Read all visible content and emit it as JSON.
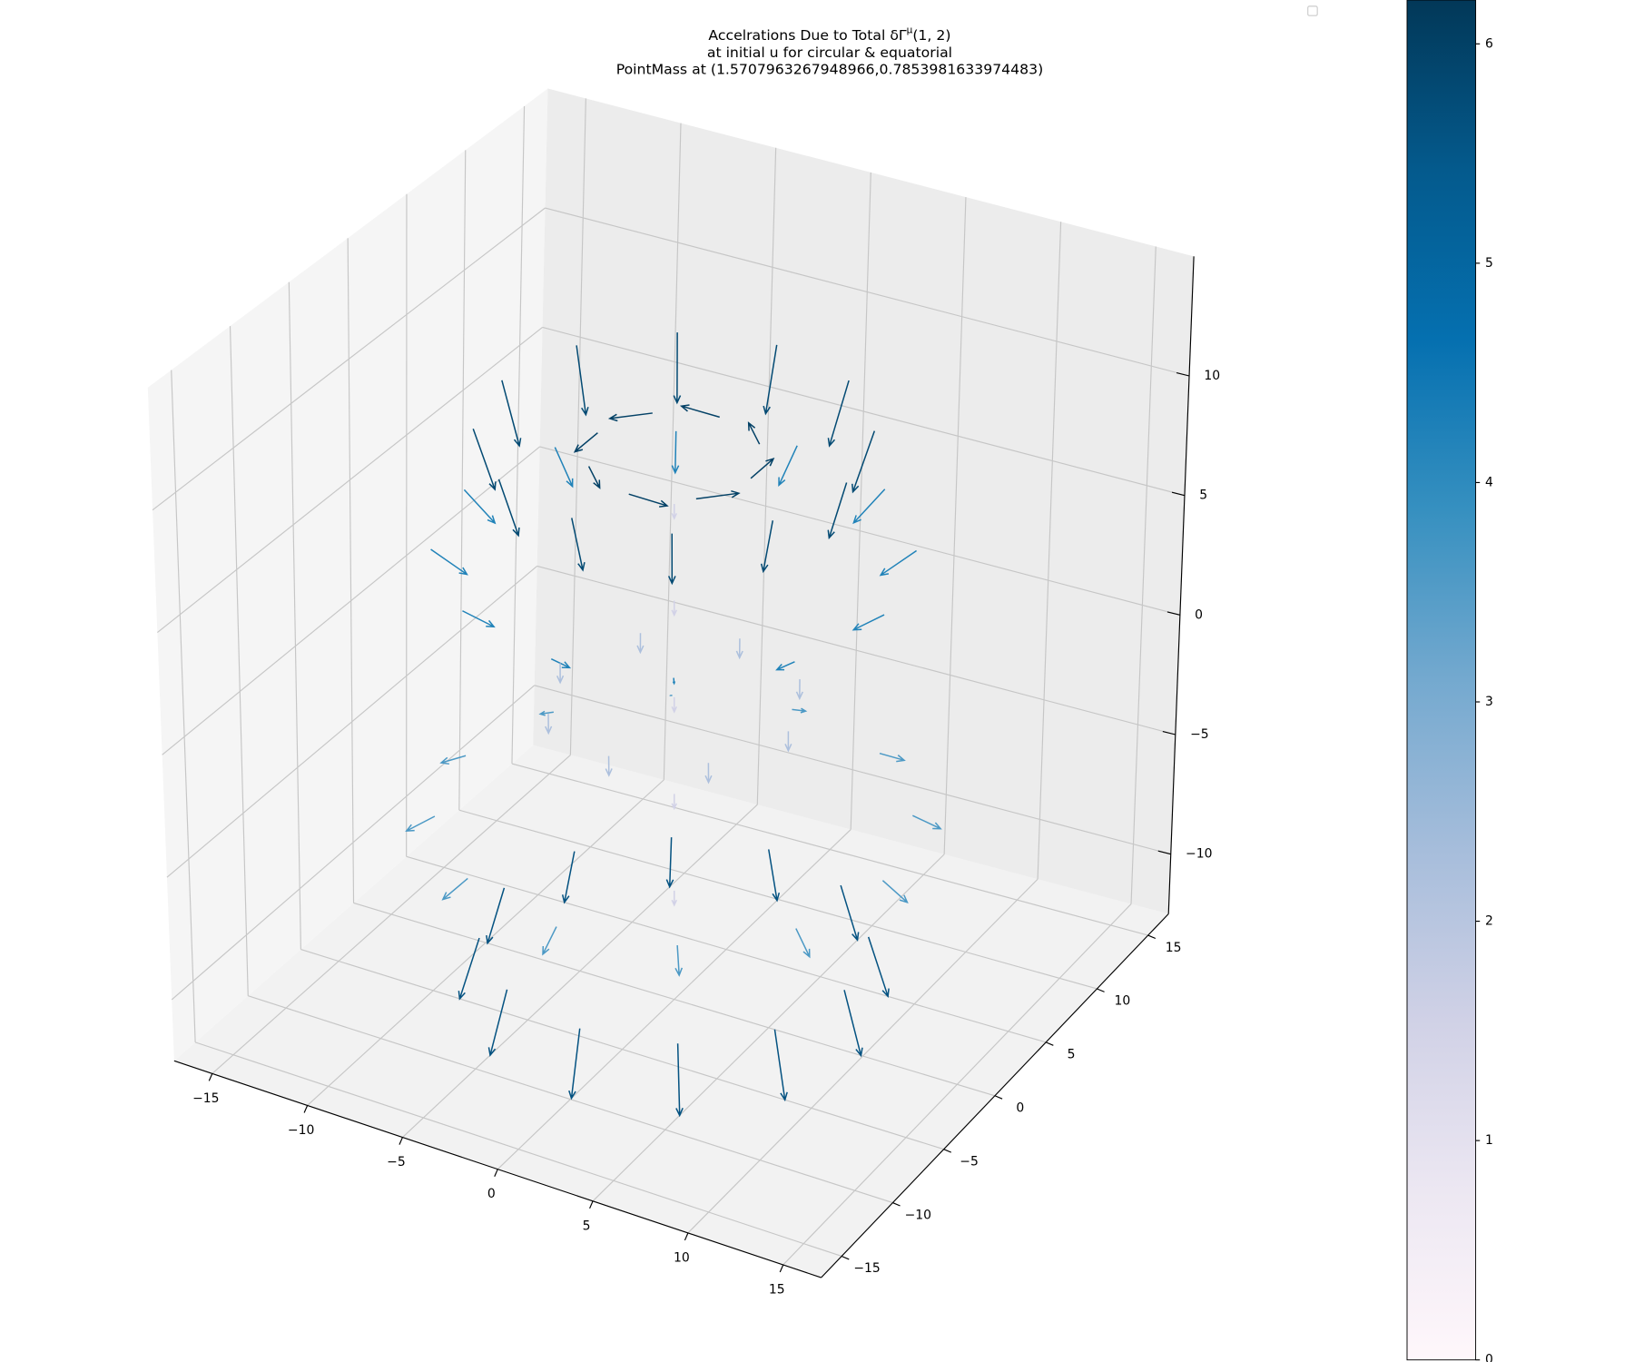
{
  "chart_data": {
    "type": "quiver3d",
    "title": [
      "Accelrations Due to Total δΓ",
      "at initial u for circular & equatorial",
      "PointMass at (1.5707963267948966,0.7853981633974483)"
    ],
    "title_superscript": "μ",
    "title_suffix": "(1, 2)",
    "xlim": [
      -17,
      17
    ],
    "ylim": [
      -17,
      17
    ],
    "zlim": [
      -12.5,
      15
    ],
    "xticks": [
      {
        "value": -15,
        "label": "−15"
      },
      {
        "value": -10,
        "label": "−10"
      },
      {
        "value": -5,
        "label": "−5"
      },
      0,
      5,
      10,
      15
    ],
    "yticks": [
      {
        "value": -15,
        "label": "−15"
      },
      {
        "value": -10,
        "label": "−10"
      },
      {
        "value": -5,
        "label": "−5"
      },
      0,
      5,
      10,
      15
    ],
    "zticks": [
      {
        "value": -10,
        "label": "−10"
      },
      {
        "value": -5,
        "label": "−5"
      },
      0,
      5,
      10
    ],
    "grid": true,
    "colormap": [
      "#fff7fb",
      "#ece7f2",
      "#d0d1e6",
      "#a6bddb",
      "#74a9cf",
      "#3690c0",
      "#0570b0",
      "#045a8d",
      "#023858"
    ],
    "clim": [
      0,
      6.2
    ],
    "cticks": [
      0,
      1,
      2,
      3,
      4,
      5,
      6
    ],
    "x": [
      9,
      7.8,
      4.5,
      0,
      -4.5,
      -7.8,
      -9,
      -7.8,
      -4.5,
      0,
      4.5,
      7.8,
      11,
      9.5,
      5.5,
      0,
      -5.5,
      -9.5,
      -11,
      -9.5,
      -5.5,
      0,
      5.5,
      9.5,
      11,
      9.5,
      5.5,
      0,
      -5.5,
      -9.5,
      -11,
      -9.5,
      -5.5,
      0,
      5.5,
      9.5,
      9,
      7.8,
      4.5,
      0,
      -4.5,
      -7.8,
      -9,
      -7.8,
      -4.5,
      0,
      4.5,
      7.8,
      4,
      2.8,
      0,
      -2.8,
      -4,
      -2.8,
      0,
      2.8,
      0,
      0,
      0,
      0,
      0,
      6,
      4.2,
      0,
      -4.2,
      -6,
      -4.2,
      0,
      4.2
    ],
    "y": [
      0,
      4.5,
      7.8,
      9,
      7.8,
      4.5,
      0,
      -4.5,
      -7.8,
      -9,
      -7.8,
      -4.5,
      0,
      5.5,
      9.5,
      11,
      9.5,
      5.5,
      0,
      -5.5,
      -9.5,
      -11,
      -9.5,
      -5.5,
      0,
      5.5,
      9.5,
      11,
      9.5,
      5.5,
      0,
      -5.5,
      -9.5,
      -11,
      -9.5,
      -5.5,
      0,
      4.5,
      7.8,
      9,
      7.8,
      4.5,
      0,
      -4.5,
      -7.8,
      -9,
      -7.8,
      -4.5,
      0,
      2.8,
      4,
      2.8,
      0,
      -2.8,
      -4,
      -2.8,
      0,
      0,
      0,
      0,
      0,
      0,
      4.2,
      6,
      4.2,
      0,
      -4.2,
      -6,
      -4.2
    ],
    "z": [
      11,
      11,
      11,
      11,
      11,
      11,
      11,
      11,
      11,
      11,
      11,
      11,
      6,
      6,
      6,
      6,
      6,
      6,
      6,
      6,
      6,
      6,
      6,
      6,
      -5,
      -5,
      -5,
      -5,
      -5,
      -5,
      -5,
      -5,
      -5,
      -5,
      -5,
      -5,
      -10,
      -10,
      -10,
      -10,
      -10,
      -10,
      -10,
      -10,
      -10,
      -10,
      -10,
      -10,
      10,
      10,
      10,
      10,
      10,
      10,
      10,
      10,
      -8,
      -4,
      0,
      4,
      8,
      0,
      0,
      0,
      0,
      0,
      0,
      0,
      0
    ],
    "u": [
      -0.9,
      -0.8,
      -0.5,
      0,
      0.5,
      0.8,
      0.9,
      0.8,
      0.5,
      0,
      -0.5,
      -0.8,
      -1.6,
      -1.4,
      -0.8,
      0,
      0.8,
      1.4,
      1.6,
      1.4,
      0.8,
      0,
      -0.8,
      -1.4,
      1.3,
      1.1,
      0.7,
      0,
      -0.7,
      -1.1,
      -1.3,
      -1.1,
      -0.7,
      0,
      0.7,
      1.1,
      0.9,
      0.8,
      0.5,
      0,
      -0.5,
      -0.8,
      -0.9,
      -0.8,
      -0.5,
      0,
      0.5,
      0.8,
      0,
      -1.4,
      -2,
      -1.4,
      0,
      1.4,
      2,
      1.4,
      0,
      0,
      0,
      0,
      0,
      0,
      0,
      0,
      0,
      0,
      0,
      0,
      0
    ],
    "v": [
      0,
      -0.5,
      -0.8,
      -0.9,
      -0.8,
      -0.5,
      0,
      0.5,
      0.8,
      0.9,
      0.8,
      0.5,
      0,
      -0.8,
      -1.4,
      -1.6,
      -1.4,
      -0.8,
      0,
      0.8,
      1.4,
      1.6,
      1.4,
      0.8,
      0,
      0.7,
      1.1,
      1.3,
      1.1,
      0.7,
      0,
      -0.7,
      -1.1,
      -1.3,
      -1.1,
      -0.7,
      0,
      0.5,
      0.8,
      0.9,
      0.8,
      0.5,
      0,
      -0.5,
      -0.8,
      -0.9,
      -0.8,
      -0.5,
      2,
      1.4,
      0,
      -1.4,
      -2,
      -1.4,
      0,
      1.4,
      0,
      0,
      0,
      0,
      0,
      0,
      0,
      0,
      0,
      0,
      0,
      0,
      0
    ],
    "w": [
      -2.5,
      -2.5,
      -2.5,
      -2.5,
      -2.5,
      -2.5,
      -2.5,
      -2.5,
      -2.5,
      -2.5,
      -2.5,
      -2.5,
      -1,
      -1,
      -1,
      -1,
      -1,
      -1,
      -1,
      -1,
      -1,
      -1,
      -1,
      -1,
      -0.6,
      -0.6,
      -0.6,
      -0.6,
      -0.6,
      -0.6,
      -0.6,
      -0.6,
      -0.6,
      -0.6,
      -0.6,
      -0.6,
      -2.5,
      -2.5,
      -2.5,
      -2.5,
      -2.5,
      -2.5,
      -2.5,
      -2.5,
      -2.5,
      -2.5,
      -2.5,
      -2.5,
      0,
      0,
      0,
      0,
      0,
      0,
      0,
      0,
      -0.6,
      -0.6,
      -0.6,
      -0.6,
      -0.6,
      -0.8,
      -0.8,
      -0.8,
      -0.8,
      -0.8,
      -0.8,
      -0.8,
      -0.8
    ],
    "c": [
      5.8,
      5.8,
      5.8,
      5.8,
      5.8,
      5.8,
      5.8,
      5.8,
      5.8,
      5.8,
      5.8,
      5.8,
      4.2,
      4.2,
      4.2,
      4.2,
      4.2,
      4.2,
      4.2,
      4.2,
      4.2,
      4.2,
      4.2,
      4.2,
      3.6,
      3.6,
      3.6,
      3.6,
      3.6,
      3.6,
      3.6,
      3.6,
      3.6,
      3.6,
      3.6,
      3.6,
      5.6,
      5.6,
      5.6,
      5.6,
      5.6,
      5.6,
      5.6,
      5.6,
      5.6,
      5.6,
      5.6,
      5.6,
      6,
      6,
      6,
      6,
      6,
      6,
      6,
      6,
      1.5,
      1.5,
      1.5,
      1.5,
      1.5,
      2.2,
      2.2,
      2.2,
      2.2,
      2.2,
      2.2,
      2.2,
      2.2
    ]
  }
}
